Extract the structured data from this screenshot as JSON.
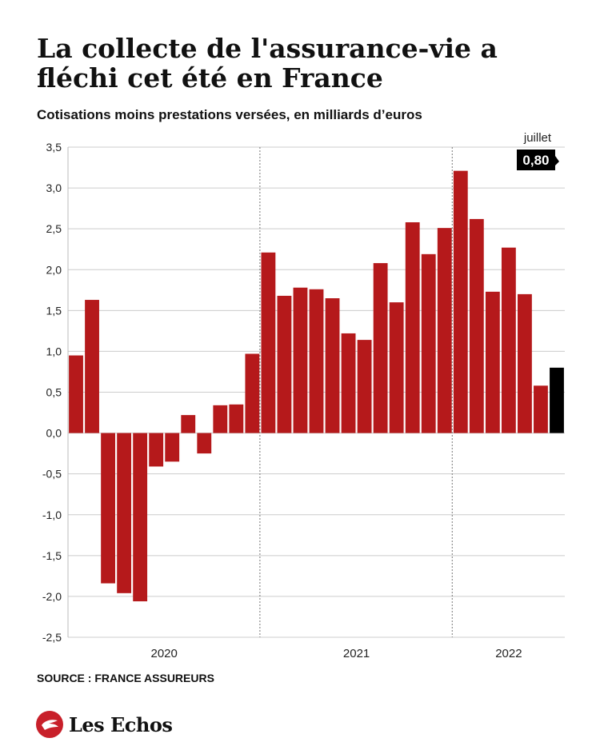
{
  "title": "La collecte de l'assurance-vie a fléchi cet été en France",
  "subtitle": "Cotisations moins prestations versées, en milliards d’euros",
  "source": "SOURCE :  FRANCE ASSUREURS",
  "brand": "Les Echos",
  "colors": {
    "bar": "#b5191b",
    "highlight": "#000000",
    "grid": "#cccccc",
    "text": "#111111"
  },
  "chart_data": {
    "type": "bar",
    "ylim": [
      -2.5,
      3.5
    ],
    "yticks": [
      "3,5",
      "3,0",
      "2,5",
      "2,0",
      "1,5",
      "1,0",
      "0,5",
      "0,0",
      "-0,5",
      "-1,0",
      "-1,5",
      "-2,0",
      "-2,5"
    ],
    "ytick_values": [
      3.5,
      3.0,
      2.5,
      2.0,
      1.5,
      1.0,
      0.5,
      0.0,
      -0.5,
      -1.0,
      -1.5,
      -2.0,
      -2.5
    ],
    "year_labels": [
      "2020",
      "2021",
      "2022"
    ],
    "values": [
      0.95,
      1.63,
      -1.84,
      -1.96,
      -2.06,
      -0.41,
      -0.35,
      0.22,
      -0.25,
      0.34,
      0.35,
      0.97,
      2.21,
      1.68,
      1.78,
      1.76,
      1.65,
      1.22,
      1.14,
      2.08,
      1.6,
      2.58,
      2.19,
      2.51,
      3.21,
      2.62,
      1.73,
      2.27,
      1.7,
      0.58,
      0.8
    ],
    "highlight_index": 30,
    "annotation": {
      "label": "juillet",
      "value": "0,80"
    },
    "grid": true
  }
}
